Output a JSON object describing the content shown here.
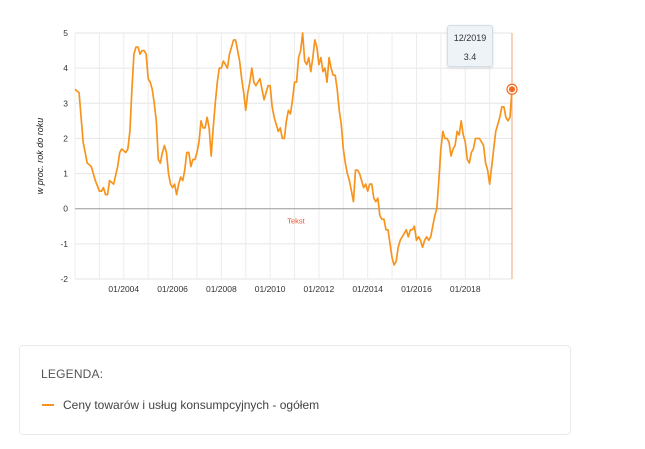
{
  "chart_data": {
    "type": "line",
    "ylabel": "w proc. rok do roku",
    "ylim": [
      -2,
      5
    ],
    "yticks": [
      "5",
      "4",
      "3",
      "2",
      "1",
      "0",
      "-1",
      "-2"
    ],
    "xtick_labels": [
      "01/2004",
      "01/2006",
      "01/2008",
      "01/2010",
      "01/2012",
      "01/2014",
      "01/2016",
      "01/2018"
    ],
    "xrange": [
      "2002-01",
      "2019-12"
    ],
    "grid": true,
    "annotation": "Tekst",
    "series": [
      {
        "name": "Ceny towarów i usług konsumpcyjnych - ogółem",
        "color": "#f7941d",
        "points": [
          [
            "2002-01",
            3.4
          ],
          [
            "2002-03",
            3.3
          ],
          [
            "2002-05",
            1.9
          ],
          [
            "2002-07",
            1.3
          ],
          [
            "2002-09",
            1.2
          ],
          [
            "2002-11",
            0.8
          ],
          [
            "2003-01",
            0.5
          ],
          [
            "2003-02",
            0.5
          ],
          [
            "2003-03",
            0.6
          ],
          [
            "2003-04",
            0.4
          ],
          [
            "2003-05",
            0.4
          ],
          [
            "2003-06",
            0.8
          ],
          [
            "2003-08",
            0.7
          ],
          [
            "2003-10",
            1.2
          ],
          [
            "2003-11",
            1.6
          ],
          [
            "2003-12",
            1.7
          ],
          [
            "2004-02",
            1.6
          ],
          [
            "2004-03",
            1.7
          ],
          [
            "2004-04",
            2.2
          ],
          [
            "2004-05",
            3.4
          ],
          [
            "2004-06",
            4.4
          ],
          [
            "2004-07",
            4.6
          ],
          [
            "2004-08",
            4.6
          ],
          [
            "2004-09",
            4.4
          ],
          [
            "2004-10",
            4.5
          ],
          [
            "2004-11",
            4.5
          ],
          [
            "2004-12",
            4.4
          ],
          [
            "2005-01",
            3.7
          ],
          [
            "2005-02",
            3.6
          ],
          [
            "2005-03",
            3.4
          ],
          [
            "2005-04",
            3.0
          ],
          [
            "2005-05",
            2.5
          ],
          [
            "2005-06",
            1.4
          ],
          [
            "2005-07",
            1.3
          ],
          [
            "2005-08",
            1.6
          ],
          [
            "2005-09",
            1.8
          ],
          [
            "2005-10",
            1.6
          ],
          [
            "2005-11",
            1.0
          ],
          [
            "2005-12",
            0.7
          ],
          [
            "2006-01",
            0.6
          ],
          [
            "2006-02",
            0.7
          ],
          [
            "2006-03",
            0.4
          ],
          [
            "2006-04",
            0.7
          ],
          [
            "2006-05",
            0.9
          ],
          [
            "2006-06",
            0.8
          ],
          [
            "2006-07",
            1.1
          ],
          [
            "2006-08",
            1.6
          ],
          [
            "2006-09",
            1.6
          ],
          [
            "2006-10",
            1.2
          ],
          [
            "2006-11",
            1.4
          ],
          [
            "2006-12",
            1.4
          ],
          [
            "2007-01",
            1.6
          ],
          [
            "2007-02",
            1.9
          ],
          [
            "2007-03",
            2.5
          ],
          [
            "2007-04",
            2.3
          ],
          [
            "2007-05",
            2.3
          ],
          [
            "2007-06",
            2.6
          ],
          [
            "2007-07",
            2.3
          ],
          [
            "2007-08",
            1.5
          ],
          [
            "2007-09",
            2.3
          ],
          [
            "2007-10",
            3.0
          ],
          [
            "2007-11",
            3.6
          ],
          [
            "2007-12",
            4.0
          ],
          [
            "2008-01",
            4.0
          ],
          [
            "2008-02",
            4.2
          ],
          [
            "2008-03",
            4.1
          ],
          [
            "2008-04",
            4.0
          ],
          [
            "2008-05",
            4.4
          ],
          [
            "2008-06",
            4.6
          ],
          [
            "2008-07",
            4.8
          ],
          [
            "2008-08",
            4.8
          ],
          [
            "2008-09",
            4.5
          ],
          [
            "2008-10",
            4.2
          ],
          [
            "2008-11",
            3.7
          ],
          [
            "2008-12",
            3.3
          ],
          [
            "2009-01",
            2.8
          ],
          [
            "2009-02",
            3.3
          ],
          [
            "2009-03",
            3.6
          ],
          [
            "2009-04",
            4.0
          ],
          [
            "2009-05",
            3.6
          ],
          [
            "2009-06",
            3.5
          ],
          [
            "2009-07",
            3.6
          ],
          [
            "2009-08",
            3.7
          ],
          [
            "2009-09",
            3.4
          ],
          [
            "2009-10",
            3.1
          ],
          [
            "2009-11",
            3.3
          ],
          [
            "2009-12",
            3.5
          ],
          [
            "2010-01",
            3.5
          ],
          [
            "2010-02",
            2.9
          ],
          [
            "2010-03",
            2.6
          ],
          [
            "2010-04",
            2.4
          ],
          [
            "2010-05",
            2.2
          ],
          [
            "2010-06",
            2.3
          ],
          [
            "2010-07",
            2.0
          ],
          [
            "2010-08",
            2.0
          ],
          [
            "2010-09",
            2.5
          ],
          [
            "2010-10",
            2.8
          ],
          [
            "2010-11",
            2.7
          ],
          [
            "2010-12",
            3.1
          ],
          [
            "2011-01",
            3.6
          ],
          [
            "2011-02",
            3.6
          ],
          [
            "2011-03",
            4.3
          ],
          [
            "2011-04",
            4.5
          ],
          [
            "2011-05",
            5.0
          ],
          [
            "2011-06",
            4.2
          ],
          [
            "2011-07",
            4.1
          ],
          [
            "2011-08",
            4.3
          ],
          [
            "2011-09",
            3.9
          ],
          [
            "2011-10",
            4.3
          ],
          [
            "2011-11",
            4.8
          ],
          [
            "2011-12",
            4.6
          ],
          [
            "2012-01",
            4.1
          ],
          [
            "2012-02",
            4.3
          ],
          [
            "2012-03",
            3.9
          ],
          [
            "2012-04",
            4.0
          ],
          [
            "2012-05",
            3.6
          ],
          [
            "2012-06",
            4.3
          ],
          [
            "2012-07",
            4.0
          ],
          [
            "2012-08",
            3.8
          ],
          [
            "2012-09",
            3.8
          ],
          [
            "2012-10",
            3.4
          ],
          [
            "2012-11",
            2.8
          ],
          [
            "2012-12",
            2.4
          ],
          [
            "2013-01",
            1.7
          ],
          [
            "2013-02",
            1.3
          ],
          [
            "2013-03",
            1.0
          ],
          [
            "2013-04",
            0.8
          ],
          [
            "2013-05",
            0.5
          ],
          [
            "2013-06",
            0.2
          ],
          [
            "2013-07",
            1.1
          ],
          [
            "2013-08",
            1.1
          ],
          [
            "2013-09",
            1.0
          ],
          [
            "2013-10",
            0.8
          ],
          [
            "2013-11",
            0.6
          ],
          [
            "2013-12",
            0.7
          ],
          [
            "2014-01",
            0.5
          ],
          [
            "2014-02",
            0.7
          ],
          [
            "2014-03",
            0.7
          ],
          [
            "2014-04",
            0.3
          ],
          [
            "2014-05",
            0.2
          ],
          [
            "2014-06",
            0.3
          ],
          [
            "2014-07",
            -0.2
          ],
          [
            "2014-08",
            -0.3
          ],
          [
            "2014-09",
            -0.3
          ],
          [
            "2014-10",
            -0.6
          ],
          [
            "2014-11",
            -0.6
          ],
          [
            "2014-12",
            -1.0
          ],
          [
            "2015-01",
            -1.4
          ],
          [
            "2015-02",
            -1.6
          ],
          [
            "2015-03",
            -1.5
          ],
          [
            "2015-04",
            -1.1
          ],
          [
            "2015-05",
            -0.9
          ],
          [
            "2015-06",
            -0.8
          ],
          [
            "2015-07",
            -0.7
          ],
          [
            "2015-08",
            -0.6
          ],
          [
            "2015-09",
            -0.8
          ],
          [
            "2015-10",
            -0.6
          ],
          [
            "2015-11",
            -0.6
          ],
          [
            "2015-12",
            -0.5
          ],
          [
            "2016-01",
            -0.9
          ],
          [
            "2016-02",
            -0.8
          ],
          [
            "2016-03",
            -0.9
          ],
          [
            "2016-04",
            -1.1
          ],
          [
            "2016-05",
            -0.9
          ],
          [
            "2016-06",
            -0.8
          ],
          [
            "2016-07",
            -0.9
          ],
          [
            "2016-08",
            -0.8
          ],
          [
            "2016-09",
            -0.5
          ],
          [
            "2016-10",
            -0.2
          ],
          [
            "2016-11",
            0.0
          ],
          [
            "2016-12",
            0.8
          ],
          [
            "2017-01",
            1.7
          ],
          [
            "2017-02",
            2.2
          ],
          [
            "2017-03",
            2.0
          ],
          [
            "2017-04",
            2.0
          ],
          [
            "2017-05",
            1.9
          ],
          [
            "2017-06",
            1.5
          ],
          [
            "2017-07",
            1.7
          ],
          [
            "2017-08",
            1.8
          ],
          [
            "2017-09",
            2.2
          ],
          [
            "2017-10",
            2.1
          ],
          [
            "2017-11",
            2.5
          ],
          [
            "2017-12",
            2.1
          ],
          [
            "2018-01",
            1.9
          ],
          [
            "2018-02",
            1.4
          ],
          [
            "2018-03",
            1.3
          ],
          [
            "2018-04",
            1.6
          ],
          [
            "2018-05",
            1.7
          ],
          [
            "2018-06",
            2.0
          ],
          [
            "2018-07",
            2.0
          ],
          [
            "2018-08",
            2.0
          ],
          [
            "2018-09",
            1.9
          ],
          [
            "2018-10",
            1.8
          ],
          [
            "2018-11",
            1.3
          ],
          [
            "2018-12",
            1.1
          ],
          [
            "2019-01",
            0.7
          ],
          [
            "2019-02",
            1.2
          ],
          [
            "2019-03",
            1.7
          ],
          [
            "2019-04",
            2.2
          ],
          [
            "2019-05",
            2.4
          ],
          [
            "2019-06",
            2.6
          ],
          [
            "2019-07",
            2.9
          ],
          [
            "2019-08",
            2.9
          ],
          [
            "2019-09",
            2.6
          ],
          [
            "2019-10",
            2.5
          ],
          [
            "2019-11",
            2.6
          ],
          [
            "2019-12",
            3.4
          ]
        ]
      }
    ],
    "highlight": {
      "date": "12/2019",
      "value": "3.4"
    }
  },
  "legend": {
    "title": "LEGENDA:",
    "items": [
      {
        "label": "Ceny towarów i usług konsumpcyjnych - ogółem",
        "color": "#f7941d"
      }
    ]
  }
}
